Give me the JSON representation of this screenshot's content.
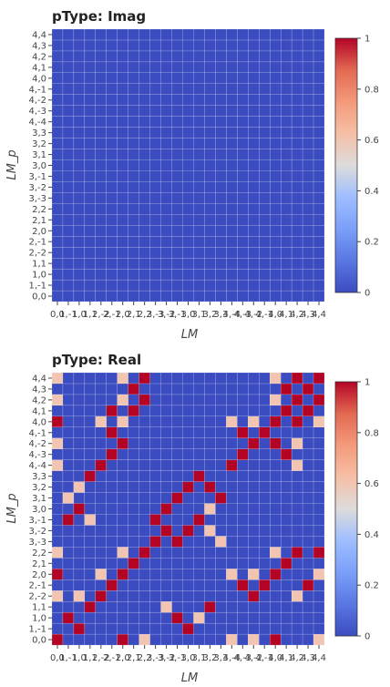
{
  "chart_data": [
    {
      "type": "heatmap",
      "title": "pType: Imag",
      "xlabel": "LM",
      "ylabel": "LM_p",
      "labels": [
        "0,0",
        "1,-1",
        "1,0",
        "1,1",
        "2,-2",
        "2,-1",
        "2,0",
        "2,1",
        "2,2",
        "3,-3",
        "3,-2",
        "3,-1",
        "3,0",
        "3,1",
        "3,2",
        "3,3",
        "4,-4",
        "4,-3",
        "4,-2",
        "4,-1",
        "4,0",
        "4,1",
        "4,2",
        "4,3",
        "4,4"
      ],
      "colorbar": {
        "min": 0,
        "max": 1,
        "ticks": [
          "0",
          "0.2",
          "0.4",
          "0.6",
          "0.8",
          "1"
        ]
      },
      "cells": []
    },
    {
      "type": "heatmap",
      "title": "pType: Real",
      "xlabel": "LM",
      "ylabel": "LM_p",
      "labels": [
        "0,0",
        "1,-1",
        "1,0",
        "1,1",
        "2,-2",
        "2,-1",
        "2,0",
        "2,1",
        "2,2",
        "3,-3",
        "3,-2",
        "3,-1",
        "3,0",
        "3,1",
        "3,2",
        "3,3",
        "4,-4",
        "4,-3",
        "4,-2",
        "4,-1",
        "4,0",
        "4,1",
        "4,2",
        "4,3",
        "4,4"
      ],
      "colorbar": {
        "min": 0,
        "max": 1,
        "ticks": [
          "0",
          "0.2",
          "0.4",
          "0.6",
          "0.8",
          "1"
        ]
      },
      "cells": [
        [
          0,
          0,
          1
        ],
        [
          0,
          6,
          1
        ],
        [
          0,
          20,
          1
        ],
        [
          0,
          8,
          0.6
        ],
        [
          0,
          16,
          0.6
        ],
        [
          0,
          18,
          0.6
        ],
        [
          0,
          24,
          0.6
        ],
        [
          1,
          2,
          1
        ],
        [
          1,
          12,
          1
        ],
        [
          2,
          1,
          1
        ],
        [
          2,
          11,
          1
        ],
        [
          2,
          13,
          0.6
        ],
        [
          3,
          3,
          1
        ],
        [
          3,
          14,
          1
        ],
        [
          3,
          10,
          0.6
        ],
        [
          4,
          4,
          1
        ],
        [
          4,
          18,
          1
        ],
        [
          4,
          0,
          0.6
        ],
        [
          4,
          2,
          0.6
        ],
        [
          4,
          22,
          0.6
        ],
        [
          5,
          5,
          1
        ],
        [
          5,
          17,
          1
        ],
        [
          5,
          19,
          1
        ],
        [
          5,
          23,
          1
        ],
        [
          6,
          0,
          1
        ],
        [
          6,
          6,
          1
        ],
        [
          6,
          20,
          1
        ],
        [
          6,
          4,
          0.6
        ],
        [
          6,
          16,
          0.6
        ],
        [
          6,
          18,
          0.6
        ],
        [
          6,
          24,
          0.6
        ],
        [
          7,
          7,
          1
        ],
        [
          7,
          21,
          1
        ],
        [
          8,
          8,
          1
        ],
        [
          8,
          22,
          1
        ],
        [
          8,
          24,
          1
        ],
        [
          8,
          0,
          0.6
        ],
        [
          8,
          6,
          0.6
        ],
        [
          8,
          20,
          0.6
        ],
        [
          9,
          9,
          1
        ],
        [
          9,
          11,
          1
        ],
        [
          9,
          15,
          0.6
        ],
        [
          10,
          10,
          1
        ],
        [
          10,
          12,
          1
        ],
        [
          10,
          14,
          0.6
        ],
        [
          11,
          1,
          1
        ],
        [
          11,
          9,
          1
        ],
        [
          11,
          13,
          1
        ],
        [
          11,
          3,
          0.6
        ],
        [
          12,
          2,
          1
        ],
        [
          12,
          10,
          1
        ],
        [
          12,
          14,
          0.6
        ],
        [
          13,
          11,
          1
        ],
        [
          13,
          15,
          1
        ],
        [
          13,
          1,
          0.6
        ],
        [
          14,
          12,
          1
        ],
        [
          14,
          14,
          1
        ],
        [
          14,
          2,
          0.6
        ],
        [
          15,
          3,
          1
        ],
        [
          15,
          13,
          1
        ],
        [
          16,
          0,
          0.6
        ],
        [
          16,
          4,
          1
        ],
        [
          16,
          16,
          1
        ],
        [
          16,
          22,
          0.6
        ],
        [
          17,
          5,
          1
        ],
        [
          17,
          17,
          1
        ],
        [
          17,
          21,
          1
        ],
        [
          18,
          0,
          0.6
        ],
        [
          18,
          6,
          1
        ],
        [
          18,
          18,
          1
        ],
        [
          18,
          20,
          1
        ],
        [
          18,
          22,
          0.6
        ],
        [
          19,
          5,
          1
        ],
        [
          19,
          17,
          1
        ],
        [
          19,
          19,
          1
        ],
        [
          20,
          0,
          1
        ],
        [
          20,
          4,
          0.6
        ],
        [
          20,
          6,
          0.6
        ],
        [
          20,
          16,
          0.6
        ],
        [
          20,
          18,
          0.6
        ],
        [
          20,
          20,
          1
        ],
        [
          20,
          22,
          1
        ],
        [
          20,
          24,
          0.6
        ],
        [
          21,
          5,
          1
        ],
        [
          21,
          7,
          1
        ],
        [
          21,
          21,
          1
        ],
        [
          21,
          23,
          1
        ],
        [
          22,
          0,
          0.6
        ],
        [
          22,
          6,
          0.6
        ],
        [
          22,
          8,
          1
        ],
        [
          22,
          20,
          0.6
        ],
        [
          22,
          22,
          1
        ],
        [
          22,
          24,
          1
        ],
        [
          23,
          7,
          1
        ],
        [
          23,
          21,
          1
        ],
        [
          23,
          23,
          1
        ],
        [
          24,
          0,
          0.6
        ],
        [
          24,
          6,
          0.6
        ],
        [
          24,
          8,
          1
        ],
        [
          24,
          20,
          0.6
        ],
        [
          24,
          22,
          1
        ],
        [
          24,
          24,
          1
        ]
      ]
    }
  ]
}
